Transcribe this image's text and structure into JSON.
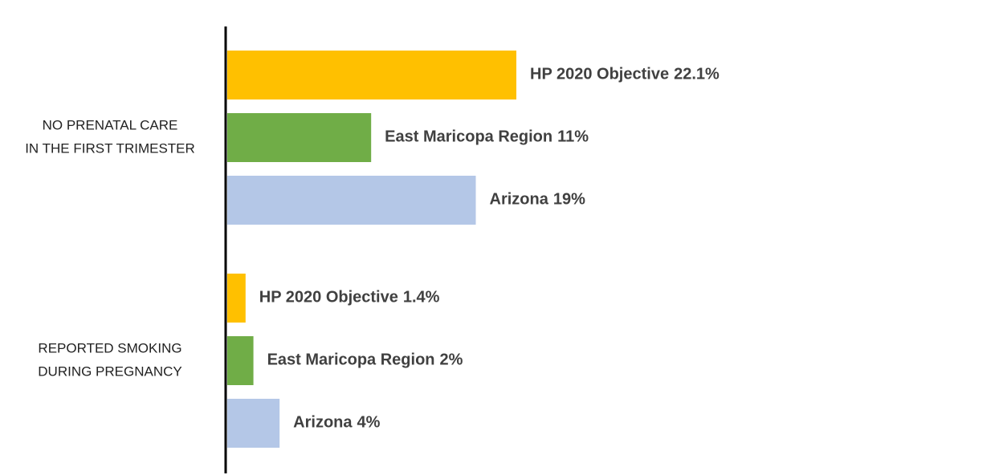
{
  "chart_data": {
    "type": "hbar",
    "categories": [
      [
        "NO PRENATAL CARE",
        "IN THE FIRST TRIMESTER"
      ],
      [
        "REPORTED SMOKING",
        "DURING PREGNANCY"
      ]
    ],
    "series": [
      {
        "name": "HP 2020 Objective",
        "color": "#ffc000",
        "values": [
          22.1,
          1.4
        ],
        "value_labels": [
          "22.1%",
          "1.4%"
        ]
      },
      {
        "name": "East Maricopa Region",
        "color": "#70ad47",
        "values": [
          11,
          2
        ],
        "value_labels": [
          "11%",
          "2%"
        ]
      },
      {
        "name": "Arizona",
        "color": "#b4c7e7",
        "values": [
          19,
          4
        ],
        "value_labels": [
          "19%",
          "4%"
        ]
      }
    ]
  }
}
